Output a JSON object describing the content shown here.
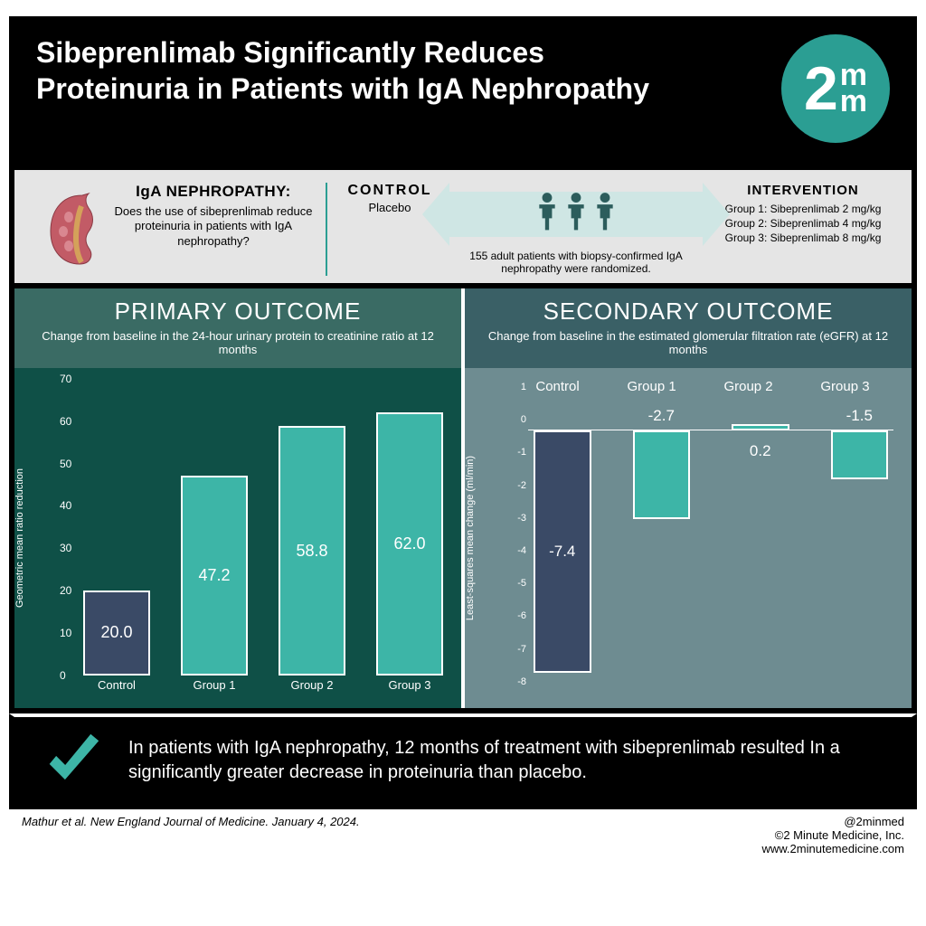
{
  "header": {
    "title": "Sibeprenlimab Significantly Reduces Proteinuria in Patients with IgA Nephropathy",
    "logo_text_main": "2",
    "logo_text_sup": "m",
    "logo_text_sub": "m"
  },
  "colors": {
    "brand": "#2b9e93",
    "bar_control": "#3a4a66",
    "bar_group": "#3db5a7",
    "primary_bg": "#0f5047",
    "primary_head": "#3a6b64",
    "secondary_bg": "#6e8c91",
    "secondary_head": "#3a6066",
    "black": "#000000",
    "white": "#ffffff",
    "info_band": "#e5e5e5",
    "arrow_bg": "#cfe6e4",
    "person": "#2c5d5c"
  },
  "info": {
    "question": {
      "title": "IgA NEPHROPATHY:",
      "text": "Does the use of sibeprenlimab reduce proteinuria in patients with IgA nephropathy?"
    },
    "control": {
      "title": "CONTROL",
      "sub": "Placebo"
    },
    "cohort": "155 adult patients with biopsy-confirmed IgA nephropathy were randomized.",
    "intervention": {
      "title": "INTERVENTION",
      "groups": [
        "Group 1: Sibeprenlimab 2 mg/kg",
        "Group 2: Sibeprenlimab 4 mg/kg",
        "Group 3: Sibeprenlimab 8 mg/kg"
      ]
    }
  },
  "primary": {
    "title": "PRIMARY OUTCOME",
    "subtitle": "Change from baseline in the 24-hour urinary protein to creatinine ratio at 12 months",
    "ylabel": "Geometric mean ratio reduction",
    "ylim": [
      0,
      70
    ],
    "ytick_step": 10,
    "categories": [
      "Control",
      "Group 1",
      "Group 2",
      "Group 3"
    ],
    "values": [
      20.0,
      47.2,
      58.8,
      62.0
    ],
    "value_labels": [
      "20.0",
      "47.2",
      "58.8",
      "62.0"
    ],
    "bar_is_control": [
      true,
      false,
      false,
      false
    ]
  },
  "secondary": {
    "title": "SECONDARY OUTCOME",
    "subtitle": "Change from baseline in the estimated glomerular filtration rate (eGFR) at 12 months",
    "ylabel": "Least-squares mean change (ml/min)",
    "ylim": [
      -8,
      1
    ],
    "ytick_step": 1,
    "categories": [
      "Control",
      "Group 1",
      "Group 2",
      "Group 3"
    ],
    "values": [
      -7.4,
      -2.7,
      0.2,
      -1.5
    ],
    "value_labels": [
      "-7.4",
      "-2.7",
      "0.2",
      "-1.5"
    ],
    "bar_is_control": [
      true,
      false,
      false,
      false
    ]
  },
  "conclusion": "In patients with IgA nephropathy, 12 months of treatment with sibeprenlimab resulted In a significantly greater decrease in proteinuria than placebo.",
  "footer": {
    "citation": "Mathur et al. New England Journal of Medicine. January 4, 2024.",
    "handle": "@2minmed",
    "copyright": "©2 Minute Medicine, Inc.",
    "url": "www.2minutemedicine.com"
  }
}
